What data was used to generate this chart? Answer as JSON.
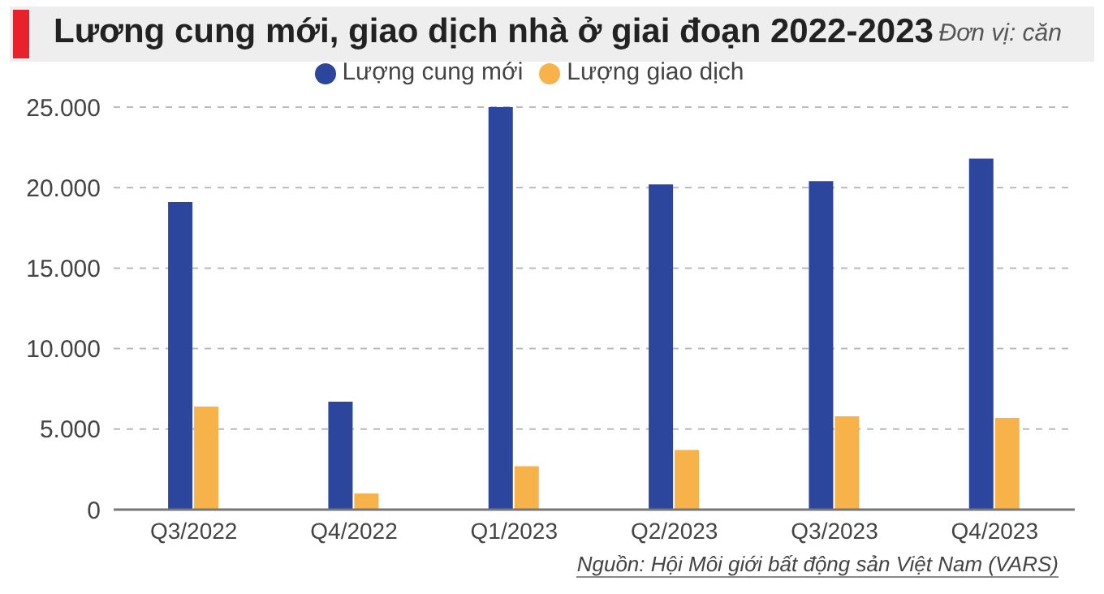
{
  "chart_data": {
    "type": "bar",
    "title": "Lương cung mới, giao dịch nhà ở giai đoạn 2022-2023",
    "categories": [
      "Q3/2022",
      "Q4/2022",
      "Q1/2023",
      "Q2/2023",
      "Q3/2023",
      "Q4/2023"
    ],
    "series": [
      {
        "name": "Lượng cung mới",
        "color": "#2b469c",
        "values": [
          19100,
          6700,
          25000,
          20200,
          20400,
          21800
        ]
      },
      {
        "name": "Lượng giao dịch",
        "color": "#f7b24a",
        "values": [
          6400,
          1000,
          2700,
          3700,
          5800,
          5700
        ]
      }
    ],
    "ylim": [
      0,
      25000
    ],
    "yticks": [
      {
        "value": 0,
        "label": "0"
      },
      {
        "value": 5000,
        "label": "5.000"
      },
      {
        "value": 10000,
        "label": "10.000"
      },
      {
        "value": 15000,
        "label": "15.000"
      },
      {
        "value": 20000,
        "label": "20.000"
      },
      {
        "value": 25000,
        "label": "25.000"
      }
    ],
    "grid": "y",
    "legend": "top",
    "annotations": [
      "Đơn vị: căn",
      "Nguồn: Hội Môi giới bất động sản Việt Nam (VARS)"
    ]
  }
}
